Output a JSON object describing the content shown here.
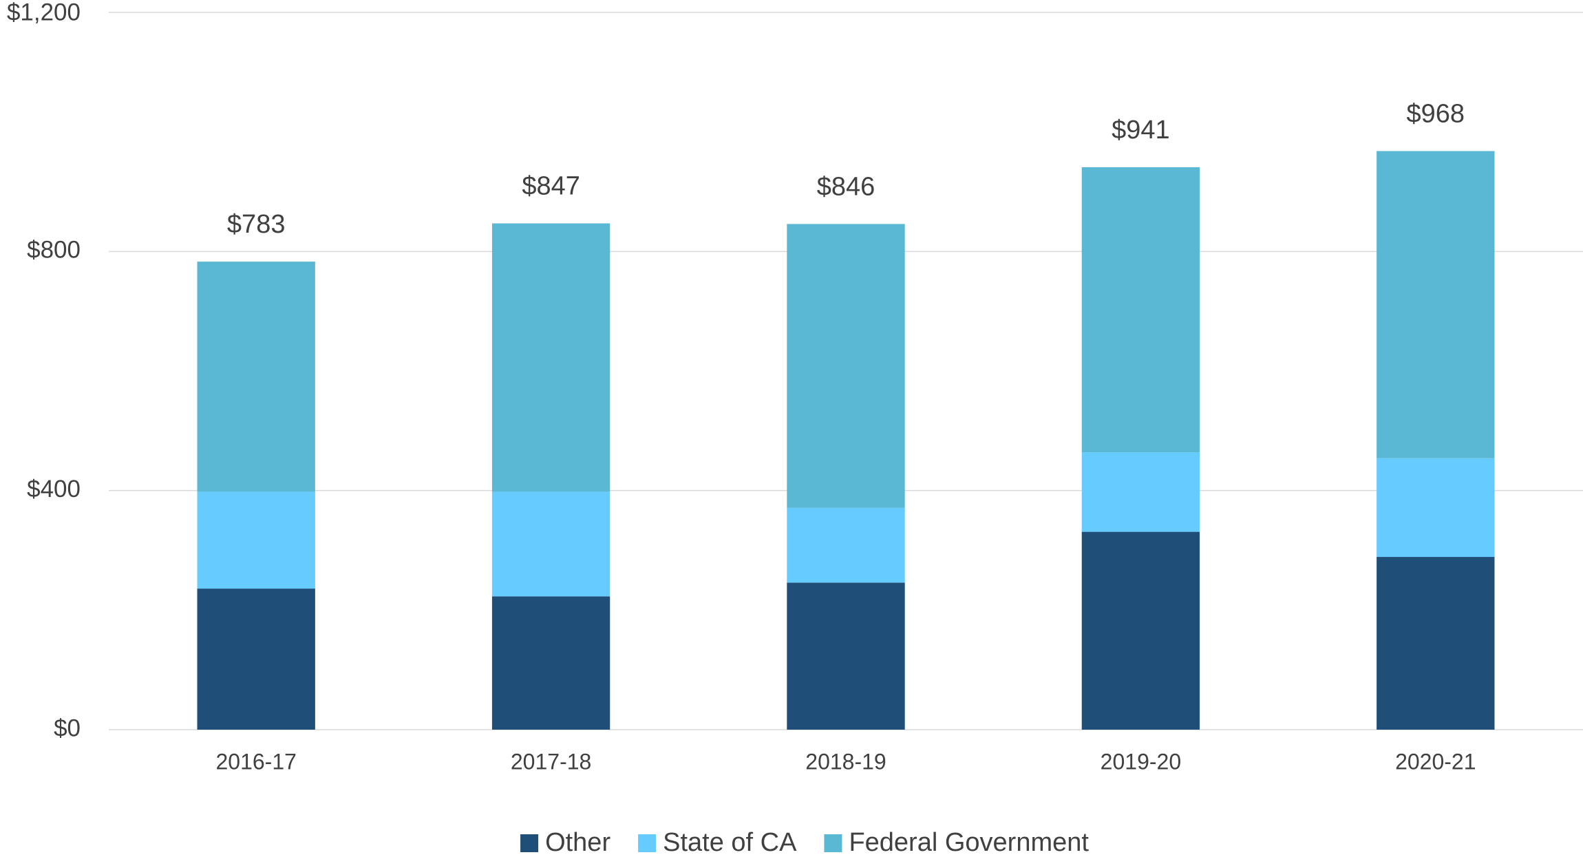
{
  "chart_data": {
    "type": "stacked_bar",
    "categories": [
      "2016-17",
      "2017-18",
      "2018-19",
      "2019-20",
      "2020-21"
    ],
    "series": [
      {
        "name": "Other",
        "color": "#1f4e79",
        "values": [
          236,
          223,
          246,
          331,
          289
        ]
      },
      {
        "name": "State of CA",
        "color": "#66ccff",
        "values": [
          162,
          175,
          125,
          133,
          165
        ]
      },
      {
        "name": "Federal Government",
        "color": "#5bb8d4",
        "values": [
          385,
          449,
          475,
          477,
          514
        ]
      }
    ],
    "totals": [
      783,
      847,
      846,
      941,
      968
    ],
    "total_labels": [
      "$783",
      "$847",
      "$846",
      "$941",
      "$968"
    ],
    "ylim": [
      0,
      1200
    ],
    "yticks": [
      {
        "value": 0,
        "label": "$0"
      },
      {
        "value": 400,
        "label": "$400"
      },
      {
        "value": 800,
        "label": "$800"
      },
      {
        "value": 1200,
        "label": "$1,200"
      }
    ],
    "grid": true,
    "legend": "bottom"
  }
}
